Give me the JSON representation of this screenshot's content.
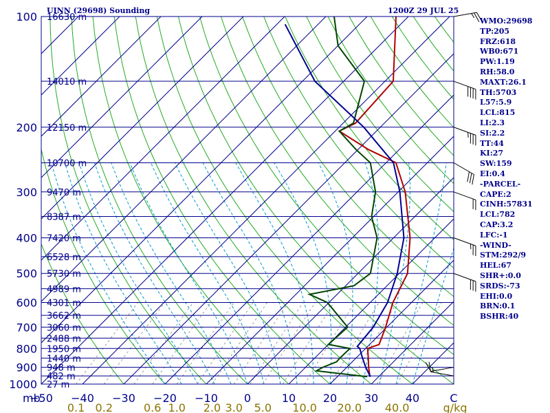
{
  "header": {
    "station": "UINN (29698) Sounding",
    "valid_time": "1200Z 29 JUL 25"
  },
  "indices": [
    "WMO:29698",
    "TP:205",
    "FRZ:618",
    "WB0:671",
    "PW:1.19",
    "RH:58.0",
    "MAXT:26.1",
    "TH:5703",
    "L57:5.9",
    "LCL:815",
    "LI:2.3",
    "SI:2.2",
    "TT:44",
    "KI:27",
    "SW:159",
    "EI:0.4",
    "-PARCEL-",
    "CAPE:2",
    "CINH:57831",
    "LCL:782",
    "CAP:3.2",
    "LFC:-1",
    "-WIND-",
    "STM:292/9",
    "HEL:67",
    "SHR+:0.0",
    "SRDS:-73",
    "EHI:0.0",
    "BRN:0.1",
    "BSHR:40"
  ],
  "chart_data": {
    "type": "line",
    "subtype": "skew-T log-p thermodynamic diagram",
    "pressure_range_mb": [
      1000,
      100
    ],
    "temperature_range_c": [
      -50,
      50
    ],
    "pressure_label_unit": "mb",
    "pressure_tick_labels": [
      "100",
      "200",
      "300",
      "400",
      "500",
      "600",
      "700",
      "800",
      "900",
      "1000"
    ],
    "temperature_tick_labels": [
      "−50",
      "−40",
      "−30",
      "−20",
      "−10",
      "0",
      "10",
      "20",
      "30",
      "40",
      "C"
    ],
    "mixing_ratio_labels": [
      "0.1",
      "0.2",
      "0.6",
      "1.0",
      "2.0",
      "3.0",
      "5.0",
      "10.0",
      "20.0",
      "40.0",
      "g/kg"
    ],
    "mixing_ratio_values": [
      0.1,
      0.2,
      0.6,
      1.0,
      2.0,
      3.0,
      5.0,
      10.0,
      20.0,
      40.0
    ],
    "height_labels": [
      {
        "p": 100,
        "text": "16630 m"
      },
      {
        "p": 150,
        "text": "14010 m"
      },
      {
        "p": 200,
        "text": "12150 m"
      },
      {
        "p": 250,
        "text": "10700 m"
      },
      {
        "p": 300,
        "text": "9470 m"
      },
      {
        "p": 350,
        "text": "8387 m"
      },
      {
        "p": 400,
        "text": "7420 m"
      },
      {
        "p": 450,
        "text": "6528 m"
      },
      {
        "p": 500,
        "text": "5730 m"
      },
      {
        "p": 550,
        "text": "4989 m"
      },
      {
        "p": 600,
        "text": "4301 m"
      },
      {
        "p": 650,
        "text": "3662 m"
      },
      {
        "p": 700,
        "text": "3060 m"
      },
      {
        "p": 750,
        "text": "2488 m"
      },
      {
        "p": 800,
        "text": "1950 m"
      },
      {
        "p": 850,
        "text": "1440 m"
      },
      {
        "p": 900,
        "text": "948 m"
      },
      {
        "p": 950,
        "text": "482 m"
      },
      {
        "p": 1000,
        "text": "27 m"
      }
    ],
    "series": [
      {
        "key": "temperature",
        "color": "#b00000",
        "points": [
          [
            955,
            27.9
          ],
          [
            900,
            25.3
          ],
          [
            850,
            23.0
          ],
          [
            800,
            20.5
          ],
          [
            780,
            22.3
          ],
          [
            700,
            19.7
          ],
          [
            600,
            15.5
          ],
          [
            500,
            12.0
          ],
          [
            400,
            4.0
          ],
          [
            300,
            -8.3
          ],
          [
            250,
            -17.6
          ],
          [
            230,
            -27.5
          ],
          [
            205,
            -39.0
          ],
          [
            195,
            -37.0
          ],
          [
            150,
            -38.0
          ],
          [
            100,
            -53.0
          ]
        ]
      },
      {
        "key": "dewpoint",
        "color": "#004400",
        "points": [
          [
            955,
            27.2
          ],
          [
            920,
            13.5
          ],
          [
            900,
            14.2
          ],
          [
            870,
            16.2
          ],
          [
            850,
            16.1
          ],
          [
            800,
            16.2
          ],
          [
            780,
            10.0
          ],
          [
            700,
            10.5
          ],
          [
            600,
            -0.4
          ],
          [
            570,
            -6.7
          ],
          [
            540,
            2.0
          ],
          [
            500,
            3.0
          ],
          [
            400,
            -4.0
          ],
          [
            350,
            -10.5
          ],
          [
            300,
            -15.5
          ],
          [
            250,
            -23.8
          ],
          [
            230,
            -30.5
          ],
          [
            205,
            -39.0
          ],
          [
            195,
            -37.5
          ],
          [
            150,
            -45.0
          ],
          [
            120,
            -60.0
          ],
          [
            100,
            -68.0
          ]
        ]
      },
      {
        "key": "parcel",
        "color": "#000090",
        "points": [
          [
            955,
            28.0
          ],
          [
            900,
            24.6
          ],
          [
            850,
            21.6
          ],
          [
            800,
            18.6
          ],
          [
            790,
            17.5
          ],
          [
            700,
            16.7
          ],
          [
            600,
            14.2
          ],
          [
            500,
            9.5
          ],
          [
            400,
            2.5
          ],
          [
            300,
            -9.6
          ],
          [
            250,
            -18.2
          ],
          [
            200,
            -34.0
          ],
          [
            150,
            -57.0
          ],
          [
            105,
            -78.0
          ]
        ]
      }
    ],
    "wind_barbs": [
      {
        "p": 950,
        "dir_deg": 100,
        "speed_kt": 15
      },
      {
        "p": 900,
        "dir_deg": 80,
        "speed_kt": 10
      },
      {
        "p": 500,
        "dir_deg": 290,
        "speed_kt": 30
      },
      {
        "p": 400,
        "dir_deg": 290,
        "speed_kt": 25
      },
      {
        "p": 300,
        "dir_deg": 290,
        "speed_kt": 20
      },
      {
        "p": 250,
        "dir_deg": 300,
        "speed_kt": 30
      },
      {
        "p": 200,
        "dir_deg": 290,
        "speed_kt": 35
      },
      {
        "p": 150,
        "dir_deg": 290,
        "speed_kt": 40
      },
      {
        "p": 100,
        "dir_deg": 260,
        "speed_kt": 25
      }
    ],
    "colors": {
      "isobar": "#00008b",
      "isotherm": "#00008b",
      "dry_adiabat": "#22aa22",
      "moist_adiabat": "#0099cc",
      "mixing_ratio": "#999999",
      "axis_text": "#00008b",
      "mixing_text": "#8b7500",
      "barb": "#000000"
    },
    "grid": true
  }
}
